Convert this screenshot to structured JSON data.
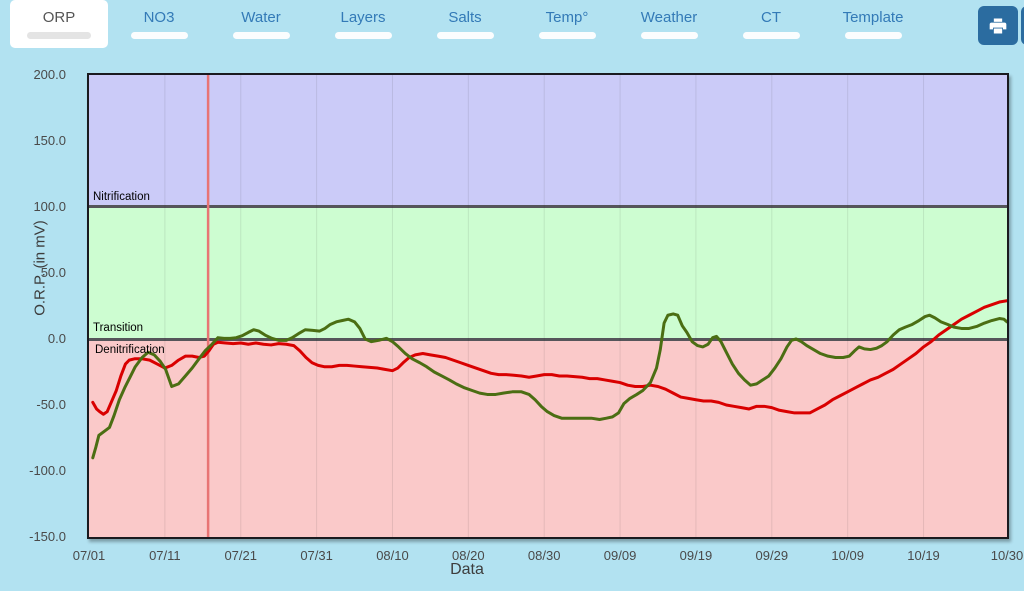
{
  "colors": {
    "page_background": "#b2e2f1",
    "tab_link_blue": "#337ab7",
    "active_tab_background": "#ffffff",
    "active_tab_text": "#555555",
    "button_blue": "#2b6ca0",
    "grid_line": "rgba(40,40,40,0.10)",
    "zone_boundary_line": "#55555a",
    "tick_text": "#4a4a4a"
  },
  "tabs": {
    "items": [
      {
        "label": "ORP",
        "active": true
      },
      {
        "label": "NO3",
        "active": false
      },
      {
        "label": "Water",
        "active": false
      },
      {
        "label": "Layers",
        "active": false
      },
      {
        "label": "Salts",
        "active": false
      },
      {
        "label": "Temp°",
        "active": false
      },
      {
        "label": "Weather",
        "active": false
      },
      {
        "label": "CT",
        "active": false
      },
      {
        "label": "Template",
        "active": false
      }
    ]
  },
  "toolbar": {
    "print_icon": "printer-icon"
  },
  "chart_data": {
    "type": "line",
    "title": "",
    "xlabel": "Data",
    "ylabel": "O.R.P. (in mV)",
    "ylim": [
      -150,
      200
    ],
    "xlim_days": [
      0,
      121
    ],
    "grid": true,
    "legend": "none",
    "y_ticks": [
      {
        "value": 200,
        "label": "200.0"
      },
      {
        "value": 150,
        "label": "150.0"
      },
      {
        "value": 100,
        "label": "100.0"
      },
      {
        "value": 50,
        "label": "50.0"
      },
      {
        "value": 0,
        "label": "0.0"
      },
      {
        "value": -50,
        "label": "-50.0"
      },
      {
        "value": -100,
        "label": "-100.0"
      },
      {
        "value": -150,
        "label": "-150.0"
      }
    ],
    "x_ticks": [
      {
        "day": 0,
        "label": "07/01"
      },
      {
        "day": 10,
        "label": "07/11"
      },
      {
        "day": 20,
        "label": "07/21"
      },
      {
        "day": 30,
        "label": "07/31"
      },
      {
        "day": 40,
        "label": "08/10"
      },
      {
        "day": 50,
        "label": "08/20"
      },
      {
        "day": 60,
        "label": "08/30"
      },
      {
        "day": 70,
        "label": "09/09"
      },
      {
        "day": 80,
        "label": "09/19"
      },
      {
        "day": 90,
        "label": "09/29"
      },
      {
        "day": 100,
        "label": "10/09"
      },
      {
        "day": 110,
        "label": "10/19"
      },
      {
        "day": 121,
        "label": "10/30"
      }
    ],
    "zones": [
      {
        "name": "Nitrification",
        "from": 100,
        "to": 200,
        "color": "#cbcbf8"
      },
      {
        "name": "Transition",
        "from": 0,
        "to": 100,
        "color": "#cdfdd1"
      },
      {
        "name": "Denitrification",
        "from": -150,
        "to": 0,
        "color": "#fac9c9"
      }
    ],
    "marker_line": {
      "day": 15.7,
      "date": "07/16",
      "color": "#e87474"
    },
    "series": [
      {
        "name": "orp-red",
        "color": "#d90000",
        "points": [
          [
            0.5,
            -48
          ],
          [
            1,
            -53
          ],
          [
            1.4,
            -55
          ],
          [
            1.9,
            -57
          ],
          [
            2.4,
            -55
          ],
          [
            3,
            -47
          ],
          [
            3.6,
            -39
          ],
          [
            4.2,
            -28
          ],
          [
            4.8,
            -19
          ],
          [
            5.3,
            -16
          ],
          [
            6,
            -15
          ],
          [
            7,
            -15
          ],
          [
            8,
            -16
          ],
          [
            9,
            -19
          ],
          [
            10,
            -22
          ],
          [
            10.9,
            -20
          ],
          [
            11.8,
            -16
          ],
          [
            12.7,
            -13
          ],
          [
            13.6,
            -13
          ],
          [
            14.5,
            -14
          ],
          [
            15.2,
            -13
          ],
          [
            15.8,
            -9
          ],
          [
            16.4,
            -4
          ],
          [
            17,
            -2.5
          ],
          [
            18,
            -3
          ],
          [
            19,
            -3.5
          ],
          [
            20,
            -3
          ],
          [
            21,
            -4
          ],
          [
            22,
            -3
          ],
          [
            23,
            -4
          ],
          [
            24,
            -4.5
          ],
          [
            25,
            -3.5
          ],
          [
            26,
            -4
          ],
          [
            27,
            -5
          ],
          [
            27.8,
            -9
          ],
          [
            28.6,
            -14
          ],
          [
            29.4,
            -18
          ],
          [
            30.2,
            -20
          ],
          [
            31,
            -21
          ],
          [
            32,
            -21
          ],
          [
            33,
            -20
          ],
          [
            34,
            -20
          ],
          [
            35,
            -20.5
          ],
          [
            36,
            -21
          ],
          [
            37,
            -21.5
          ],
          [
            38,
            -22
          ],
          [
            39,
            -23
          ],
          [
            40,
            -24
          ],
          [
            40.7,
            -22
          ],
          [
            41.4,
            -18
          ],
          [
            42.2,
            -14
          ],
          [
            43,
            -12
          ],
          [
            44,
            -11
          ],
          [
            45,
            -12
          ],
          [
            46,
            -13
          ],
          [
            47,
            -14
          ],
          [
            48,
            -16
          ],
          [
            49,
            -18
          ],
          [
            50,
            -20
          ],
          [
            51,
            -22
          ],
          [
            52,
            -24
          ],
          [
            53,
            -26
          ],
          [
            54,
            -27
          ],
          [
            55,
            -27
          ],
          [
            56,
            -27.5
          ],
          [
            57,
            -28
          ],
          [
            58,
            -29
          ],
          [
            59,
            -28
          ],
          [
            60,
            -27
          ],
          [
            61,
            -27
          ],
          [
            62,
            -28
          ],
          [
            63,
            -28
          ],
          [
            64,
            -28.5
          ],
          [
            65,
            -29
          ],
          [
            66,
            -30
          ],
          [
            67,
            -30
          ],
          [
            68,
            -31
          ],
          [
            69,
            -32
          ],
          [
            70,
            -33
          ],
          [
            71,
            -35
          ],
          [
            72,
            -36
          ],
          [
            73,
            -36
          ],
          [
            74,
            -35
          ],
          [
            75,
            -36
          ],
          [
            76,
            -38
          ],
          [
            77,
            -41
          ],
          [
            78,
            -44
          ],
          [
            79,
            -45
          ],
          [
            80,
            -46
          ],
          [
            81,
            -47
          ],
          [
            82,
            -47
          ],
          [
            83,
            -48
          ],
          [
            84,
            -50
          ],
          [
            85,
            -51
          ],
          [
            86,
            -52
          ],
          [
            87,
            -53
          ],
          [
            88,
            -51
          ],
          [
            89,
            -51
          ],
          [
            90,
            -52
          ],
          [
            91,
            -54
          ],
          [
            92,
            -55
          ],
          [
            93,
            -56
          ],
          [
            94,
            -56
          ],
          [
            95,
            -56
          ],
          [
            96,
            -53
          ],
          [
            97,
            -50
          ],
          [
            98,
            -46
          ],
          [
            99,
            -43
          ],
          [
            100,
            -40
          ],
          [
            101,
            -37
          ],
          [
            102,
            -34
          ],
          [
            103,
            -31
          ],
          [
            104,
            -29
          ],
          [
            105,
            -26
          ],
          [
            106,
            -23
          ],
          [
            107,
            -19
          ],
          [
            108,
            -15
          ],
          [
            109,
            -11
          ],
          [
            110,
            -6
          ],
          [
            111,
            -2
          ],
          [
            112,
            3
          ],
          [
            113,
            7
          ],
          [
            114,
            11
          ],
          [
            115,
            15
          ],
          [
            116,
            18
          ],
          [
            117,
            21
          ],
          [
            118,
            24
          ],
          [
            119,
            26
          ],
          [
            120,
            28
          ],
          [
            121,
            29
          ]
        ]
      },
      {
        "name": "orp-green",
        "color": "#4b6e13",
        "points": [
          [
            0.5,
            -90
          ],
          [
            0.9,
            -82
          ],
          [
            1.3,
            -73
          ],
          [
            2,
            -70
          ],
          [
            2.7,
            -67
          ],
          [
            3.3,
            -58
          ],
          [
            4,
            -46
          ],
          [
            4.7,
            -37
          ],
          [
            5.4,
            -29
          ],
          [
            6.1,
            -21
          ],
          [
            7,
            -14
          ],
          [
            7.8,
            -10
          ],
          [
            8.6,
            -12
          ],
          [
            9.4,
            -17
          ],
          [
            10.1,
            -23
          ],
          [
            10.9,
            -36
          ],
          [
            11.8,
            -34
          ],
          [
            12.7,
            -28
          ],
          [
            13.6,
            -22
          ],
          [
            14.5,
            -15
          ],
          [
            15.3,
            -9
          ],
          [
            16.2,
            -4
          ],
          [
            17,
            1
          ],
          [
            17.8,
            0.5
          ],
          [
            18.6,
            0.5
          ],
          [
            19.4,
            1
          ],
          [
            20.2,
            2.5
          ],
          [
            21,
            5
          ],
          [
            21.7,
            7
          ],
          [
            22.4,
            6
          ],
          [
            23.2,
            3
          ],
          [
            24.1,
            0.5
          ],
          [
            25,
            -1
          ],
          [
            26,
            -1
          ],
          [
            26.8,
            1
          ],
          [
            27.6,
            4
          ],
          [
            28.5,
            7
          ],
          [
            29.5,
            6.5
          ],
          [
            30.4,
            6
          ],
          [
            31.1,
            8
          ],
          [
            31.8,
            11
          ],
          [
            32.6,
            13
          ],
          [
            33.4,
            14
          ],
          [
            34.2,
            15
          ],
          [
            35,
            13
          ],
          [
            35.7,
            8
          ],
          [
            36.4,
            0
          ],
          [
            37.2,
            -2
          ],
          [
            38.2,
            -1
          ],
          [
            39.2,
            0.5
          ],
          [
            40,
            -2
          ],
          [
            40.8,
            -6
          ],
          [
            41.7,
            -11
          ],
          [
            42.6,
            -15
          ],
          [
            43.6,
            -18
          ],
          [
            44.5,
            -21
          ],
          [
            45.5,
            -25
          ],
          [
            46.5,
            -28
          ],
          [
            47.5,
            -31
          ],
          [
            48.4,
            -34
          ],
          [
            49.5,
            -37
          ],
          [
            50.5,
            -39
          ],
          [
            51.5,
            -41
          ],
          [
            52.5,
            -42
          ],
          [
            53.6,
            -42
          ],
          [
            54.6,
            -41
          ],
          [
            55.8,
            -40
          ],
          [
            57,
            -40
          ],
          [
            58,
            -42
          ],
          [
            58.8,
            -46
          ],
          [
            59.6,
            -51
          ],
          [
            60.4,
            -55
          ],
          [
            61.3,
            -58
          ],
          [
            62.3,
            -60
          ],
          [
            63.5,
            -60
          ],
          [
            65,
            -60
          ],
          [
            66.2,
            -60
          ],
          [
            67.3,
            -61
          ],
          [
            68.2,
            -60
          ],
          [
            69,
            -59
          ],
          [
            69.8,
            -56
          ],
          [
            70.5,
            -49
          ],
          [
            71.3,
            -45
          ],
          [
            72.2,
            -42
          ],
          [
            73,
            -39
          ],
          [
            74,
            -33
          ],
          [
            74.8,
            -22
          ],
          [
            75.3,
            -8
          ],
          [
            75.8,
            12
          ],
          [
            76.3,
            18
          ],
          [
            77,
            19
          ],
          [
            77.6,
            18
          ],
          [
            78.2,
            10
          ],
          [
            78.8,
            5
          ],
          [
            79.5,
            -2
          ],
          [
            80.2,
            -5
          ],
          [
            80.9,
            -6
          ],
          [
            81.6,
            -4
          ],
          [
            82.2,
            1
          ],
          [
            82.7,
            2
          ],
          [
            83.3,
            -2
          ],
          [
            84,
            -10
          ],
          [
            84.8,
            -19
          ],
          [
            85.6,
            -26
          ],
          [
            86.4,
            -31
          ],
          [
            87.2,
            -35
          ],
          [
            88,
            -34
          ],
          [
            88.8,
            -31
          ],
          [
            89.6,
            -28
          ],
          [
            90.4,
            -22
          ],
          [
            91.2,
            -15
          ],
          [
            92,
            -6
          ],
          [
            92.6,
            -1
          ],
          [
            93.2,
            0
          ],
          [
            93.9,
            -2
          ],
          [
            94.6,
            -5
          ],
          [
            95.5,
            -8
          ],
          [
            96.4,
            -11
          ],
          [
            97.4,
            -13
          ],
          [
            98.4,
            -14
          ],
          [
            99.4,
            -14
          ],
          [
            100.2,
            -13
          ],
          [
            100.9,
            -9
          ],
          [
            101.5,
            -6
          ],
          [
            102.2,
            -7.5
          ],
          [
            103,
            -8
          ],
          [
            103.8,
            -7
          ],
          [
            104.5,
            -5
          ],
          [
            105.2,
            -2
          ],
          [
            106,
            3
          ],
          [
            106.8,
            7
          ],
          [
            107.6,
            9
          ],
          [
            108.5,
            11
          ],
          [
            109.4,
            14
          ],
          [
            110.2,
            17
          ],
          [
            110.8,
            18
          ],
          [
            111.5,
            16
          ],
          [
            112.3,
            13
          ],
          [
            113.2,
            11
          ],
          [
            114,
            9
          ],
          [
            115,
            8
          ],
          [
            116,
            8
          ],
          [
            117,
            9.5
          ],
          [
            118,
            12
          ],
          [
            119,
            14
          ],
          [
            120,
            15.5
          ],
          [
            120.6,
            15
          ],
          [
            121,
            13
          ]
        ]
      }
    ]
  }
}
